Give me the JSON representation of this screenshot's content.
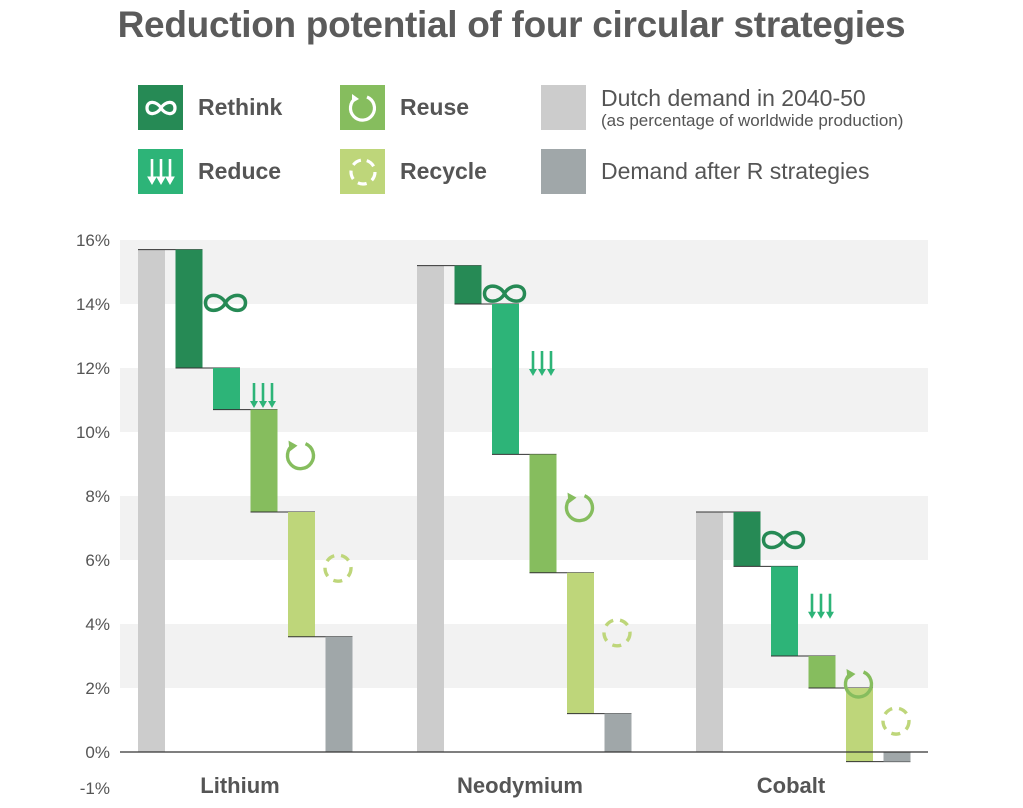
{
  "title": "Reduction potential of four circular strategies",
  "legend": {
    "rethink": "Rethink",
    "reduce": "Reduce",
    "reuse": "Reuse",
    "recycle": "Recycle",
    "dutch_demand": "Dutch demand in 2040-50",
    "dutch_demand_sub": "(as percentage of worldwide production)",
    "after": "Demand after R strategies"
  },
  "colors": {
    "rethink": "#268a55",
    "reduce": "#2db478",
    "reuse": "#86bd5e",
    "recycle": "#bed67a",
    "demand": "#cccccc",
    "after": "#a0a7a9",
    "band": "#f2f2f2"
  },
  "icons": {
    "rethink": "infinity-icon",
    "reduce": "down-arrows-icon",
    "reuse": "circular-arrow-icon",
    "recycle": "dashed-circle-arrows-icon"
  },
  "chart_data": {
    "type": "waterfall",
    "yticks": [
      "16%",
      "14%",
      "12%",
      "10%",
      "8%",
      "6%",
      "4%",
      "2%",
      "0%",
      "-1%"
    ],
    "ylim": [
      -1,
      16
    ],
    "categories": [
      "Lithium",
      "Neodymium",
      "Cobalt"
    ],
    "groups": [
      {
        "name": "Lithium",
        "demand": 15.7,
        "rethink": 3.7,
        "reduce": 1.3,
        "reuse": 3.2,
        "recycle": 3.9,
        "after": 3.6
      },
      {
        "name": "Neodymium",
        "demand": 15.2,
        "rethink": 1.2,
        "reduce": 4.7,
        "reuse": 3.7,
        "recycle": 4.4,
        "after": 1.2
      },
      {
        "name": "Cobalt",
        "demand": 7.5,
        "rethink": 1.7,
        "reduce": 2.8,
        "reuse": 1.0,
        "recycle": 2.3,
        "after": -0.3
      }
    ]
  }
}
